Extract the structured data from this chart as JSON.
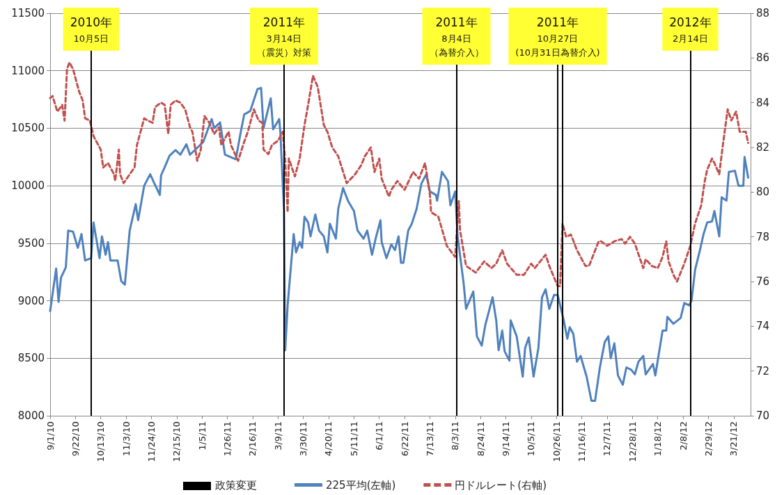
{
  "chart_data": {
    "type": "line",
    "xlim": [
      "2010-09-01",
      "2012-04-04"
    ],
    "xticks": [
      {
        "value": "2010-09-01",
        "label": "9/1/10"
      },
      {
        "value": "2010-09-22",
        "label": "9/22/10"
      },
      {
        "value": "2010-10-13",
        "label": "10/13/10"
      },
      {
        "value": "2010-11-03",
        "label": "11/3/10"
      },
      {
        "value": "2010-11-24",
        "label": "11/24/10"
      },
      {
        "value": "2010-12-15",
        "label": "12/15/10"
      },
      {
        "value": "2011-01-05",
        "label": "1/5/11"
      },
      {
        "value": "2011-01-26",
        "label": "1/26/11"
      },
      {
        "value": "2011-02-16",
        "label": "2/16/11"
      },
      {
        "value": "2011-03-09",
        "label": "3/9/11"
      },
      {
        "value": "2011-03-30",
        "label": "3/30/11"
      },
      {
        "value": "2011-04-20",
        "label": "4/20/11"
      },
      {
        "value": "2011-05-11",
        "label": "5/11/11"
      },
      {
        "value": "2011-06-01",
        "label": "6/1/11"
      },
      {
        "value": "2011-06-22",
        "label": "6/22/11"
      },
      {
        "value": "2011-07-13",
        "label": "7/13/11"
      },
      {
        "value": "2011-08-03",
        "label": "8/3/11"
      },
      {
        "value": "2011-08-24",
        "label": "8/24/11"
      },
      {
        "value": "2011-09-14",
        "label": "9/14/11"
      },
      {
        "value": "2011-10-05",
        "label": "10/5/11"
      },
      {
        "value": "2011-10-26",
        "label": "10/26/11"
      },
      {
        "value": "2011-11-16",
        "label": "11/16/11"
      },
      {
        "value": "2011-12-07",
        "label": "12/7/11"
      },
      {
        "value": "2011-12-28",
        "label": "12/28/11"
      },
      {
        "value": "2012-01-18",
        "label": "1/18/12"
      },
      {
        "value": "2012-02-08",
        "label": "2/8/12"
      },
      {
        "value": "2012-02-29",
        "label": "2/29/12"
      },
      {
        "value": "2012-03-21",
        "label": "3/21/12"
      }
    ],
    "ylim": [
      8000,
      11500
    ],
    "yticks": [
      8000,
      8500,
      9000,
      9500,
      10000,
      10500,
      11000,
      11500
    ],
    "y2lim": [
      70,
      88
    ],
    "y2ticks": [
      70,
      72,
      74,
      76,
      78,
      80,
      82,
      84,
      86,
      88
    ],
    "grid": "y",
    "legend": "bottom",
    "marker": "none",
    "annotations": [
      "政策変更"
    ],
    "ref_lines": [
      {
        "axis": "x",
        "value": "2010-10-05",
        "label": "2010年\n10月5日",
        "color": "#000000"
      },
      {
        "axis": "x",
        "value": "2011-03-14",
        "label": "2011年\n3月14日（震災）対策",
        "color": "#000000"
      },
      {
        "axis": "x",
        "value": "2011-08-04",
        "label": "2011年\n8月4日（為替介入）",
        "color": "#000000"
      },
      {
        "axis": "x",
        "value": "2011-10-27",
        "label": "2011年\n10月27日(10月31日為替介入)",
        "color": "#000000"
      },
      {
        "axis": "x",
        "value": "2011-10-31",
        "label": null,
        "color": "#000000"
      },
      {
        "axis": "x",
        "value": "2012-02-14",
        "label": "2012年\n2月14日",
        "color": "#000000"
      }
    ],
    "series": [
      {
        "name": "225平均(左軸)",
        "color": "#4f81bd",
        "line_style": "solid",
        "x": [
          "2010-09-01",
          "2010-09-06",
          "2010-09-08",
          "2010-09-10",
          "2010-09-14",
          "2010-09-16",
          "2010-09-20",
          "2010-09-24",
          "2010-09-27",
          "2010-09-30",
          "2010-10-05",
          "2010-10-07",
          "2010-10-12",
          "2010-10-14",
          "2010-10-17",
          "2010-10-19",
          "2010-10-21",
          "2010-10-27",
          "2010-10-30",
          "2010-11-02",
          "2010-11-06",
          "2010-11-11",
          "2010-11-13",
          "2010-11-18",
          "2010-11-23",
          "2010-11-26",
          "2010-12-01",
          "2010-12-02",
          "2010-12-05",
          "2010-12-09",
          "2010-12-14",
          "2010-12-18",
          "2010-12-23",
          "2010-12-26",
          "2011-01-06",
          "2011-01-13",
          "2011-01-15",
          "2011-01-20",
          "2011-01-24",
          "2011-02-02",
          "2011-02-06",
          "2011-02-09",
          "2011-02-14",
          "2011-02-20",
          "2011-02-23",
          "2011-02-25",
          "2011-03-03",
          "2011-03-05",
          "2011-03-10",
          "2011-03-11",
          "2011-03-14",
          "2011-03-15",
          "2011-03-17",
          "2011-03-22",
          "2011-03-24",
          "2011-03-27",
          "2011-03-29",
          "2011-03-31",
          "2011-04-03",
          "2011-04-05",
          "2011-04-09",
          "2011-04-12",
          "2011-04-16",
          "2011-04-19",
          "2011-04-21",
          "2011-04-26",
          "2011-04-28",
          "2011-05-02",
          "2011-05-06",
          "2011-05-11",
          "2011-05-14",
          "2011-05-19",
          "2011-05-22",
          "2011-05-26",
          "2011-05-29",
          "2011-06-02",
          "2011-06-03",
          "2011-06-07",
          "2011-06-11",
          "2011-06-14",
          "2011-06-17",
          "2011-06-19",
          "2011-06-21",
          "2011-06-25",
          "2011-06-28",
          "2011-07-02",
          "2011-07-06",
          "2011-07-10",
          "2011-07-13",
          "2011-07-18",
          "2011-07-19",
          "2011-07-23",
          "2011-07-28",
          "2011-07-30",
          "2011-08-03",
          "2011-08-05",
          "2011-08-10",
          "2011-08-12",
          "2011-08-14",
          "2011-08-18",
          "2011-08-21",
          "2011-08-25",
          "2011-08-28",
          "2011-09-03",
          "2011-09-06",
          "2011-09-08",
          "2011-09-11",
          "2011-09-13",
          "2011-09-17",
          "2011-09-18",
          "2011-09-23",
          "2011-09-28",
          "2011-09-30",
          "2011-10-03",
          "2011-10-07",
          "2011-10-11",
          "2011-10-14",
          "2011-10-17",
          "2011-10-20",
          "2011-10-24",
          "2011-10-27",
          "2011-11-01",
          "2011-11-04",
          "2011-11-06",
          "2011-11-09",
          "2011-11-12",
          "2011-11-15",
          "2011-11-20",
          "2011-11-24",
          "2011-11-27",
          "2011-12-01",
          "2011-12-05",
          "2011-12-08",
          "2011-12-10",
          "2011-12-13",
          "2011-12-16",
          "2011-12-20",
          "2011-12-23",
          "2011-12-27",
          "2011-12-30",
          "2012-01-02",
          "2012-01-06",
          "2012-01-08",
          "2012-01-14",
          "2012-01-16",
          "2012-01-22",
          "2012-01-25",
          "2012-01-26",
          "2012-01-31",
          "2012-02-06",
          "2012-02-09",
          "2012-02-13",
          "2012-02-15",
          "2012-02-18",
          "2012-02-22",
          "2012-02-25",
          "2012-02-28",
          "2012-03-03",
          "2012-03-05",
          "2012-03-09",
          "2012-03-11",
          "2012-03-15",
          "2012-03-17",
          "2012-03-22",
          "2012-03-25",
          "2012-03-29",
          "2012-03-30",
          "2012-04-02"
        ],
        "values": [
          8910,
          9280,
          8990,
          9200,
          9290,
          9610,
          9600,
          9460,
          9580,
          9350,
          9370,
          9680,
          9370,
          9560,
          9400,
          9510,
          9350,
          9350,
          9170,
          9140,
          9610,
          9840,
          9700,
          10000,
          10100,
          10030,
          9920,
          10090,
          10160,
          10260,
          10310,
          10270,
          10360,
          10270,
          10380,
          10580,
          10500,
          10550,
          10270,
          10230,
          10460,
          10620,
          10650,
          10840,
          10850,
          10500,
          10760,
          10490,
          10580,
          10460,
          9780,
          8570,
          8960,
          9580,
          9420,
          9510,
          9460,
          9730,
          9680,
          9560,
          9750,
          9610,
          9560,
          9420,
          9670,
          9540,
          9800,
          9980,
          9870,
          9780,
          9610,
          9540,
          9610,
          9400,
          9540,
          9700,
          9510,
          9370,
          9490,
          9440,
          9560,
          9330,
          9330,
          9610,
          9670,
          9800,
          10020,
          10100,
          9950,
          9920,
          9870,
          10120,
          10040,
          9830,
          9950,
          9560,
          9150,
          8930,
          8980,
          9080,
          8690,
          8610,
          8790,
          9030,
          8830,
          8570,
          8740,
          8560,
          8480,
          8830,
          8690,
          8340,
          8590,
          8680,
          8340,
          8590,
          9030,
          9100,
          8930,
          9050,
          9050,
          8830,
          8670,
          8770,
          8710,
          8470,
          8520,
          8340,
          8130,
          8130,
          8420,
          8640,
          8690,
          8500,
          8630,
          8350,
          8270,
          8420,
          8400,
          8360,
          8470,
          8520,
          8360,
          8450,
          8350,
          8740,
          8740,
          8860,
          8800,
          8850,
          8980,
          8960,
          9000,
          9270,
          9440,
          9580,
          9680,
          9690,
          9780,
          9560,
          9900,
          9870,
          10120,
          10130,
          10000,
          10000,
          10250,
          10070
        ]
      },
      {
        "name": "円ドルレート(右軸)",
        "color": "#c0504d",
        "axis": "y2",
        "line_style": "dashed",
        "x": [
          "2010-09-01",
          "2010-09-03",
          "2010-09-07",
          "2010-09-11",
          "2010-09-13",
          "2010-09-15",
          "2010-09-17",
          "2010-09-20",
          "2010-09-25",
          "2010-09-28",
          "2010-09-30",
          "2010-10-04",
          "2010-10-07",
          "2010-10-13",
          "2010-10-15",
          "2010-10-19",
          "2010-10-24",
          "2010-10-25",
          "2010-10-28",
          "2010-10-29",
          "2010-11-01",
          "2010-11-06",
          "2010-11-10",
          "2010-11-12",
          "2010-11-18",
          "2010-11-21",
          "2010-11-25",
          "2010-11-27",
          "2010-12-02",
          "2010-12-05",
          "2010-12-08",
          "2010-12-10",
          "2010-12-14",
          "2010-12-18",
          "2010-12-22",
          "2010-12-26",
          "2010-12-28",
          "2011-01-01",
          "2011-01-04",
          "2011-01-07",
          "2011-01-11",
          "2011-01-15",
          "2011-01-19",
          "2011-01-21",
          "2011-01-27",
          "2011-01-29",
          "2011-02-04",
          "2011-02-08",
          "2011-02-12",
          "2011-02-17",
          "2011-02-21",
          "2011-02-24",
          "2011-02-25",
          "2011-03-01",
          "2011-03-04",
          "2011-03-09",
          "2011-03-13",
          "2011-03-15",
          "2011-03-17",
          "2011-03-18",
          "2011-03-23",
          "2011-03-27",
          "2011-03-31",
          "2011-04-03",
          "2011-04-07",
          "2011-04-11",
          "2011-04-16",
          "2011-04-19",
          "2011-04-23",
          "2011-04-28",
          "2011-05-05",
          "2011-05-12",
          "2011-05-17",
          "2011-05-20",
          "2011-05-25",
          "2011-05-28",
          "2011-06-01",
          "2011-06-03",
          "2011-06-09",
          "2011-06-11",
          "2011-06-16",
          "2011-06-22",
          "2011-06-29",
          "2011-07-04",
          "2011-07-09",
          "2011-07-13",
          "2011-07-14",
          "2011-07-20",
          "2011-07-27",
          "2011-08-03",
          "2011-08-06",
          "2011-08-07",
          "2011-08-12",
          "2011-08-20",
          "2011-08-27",
          "2011-09-02",
          "2011-09-06",
          "2011-09-11",
          "2011-09-15",
          "2011-09-23",
          "2011-09-29",
          "2011-10-05",
          "2011-10-08",
          "2011-10-14",
          "2011-10-17",
          "2011-10-20",
          "2011-10-27",
          "2011-10-29",
          "2011-10-31",
          "2011-11-03",
          "2011-11-07",
          "2011-11-12",
          "2011-11-19",
          "2011-11-22",
          "2011-11-30",
          "2011-12-02",
          "2011-12-07",
          "2011-12-13",
          "2011-12-19",
          "2011-12-22",
          "2011-12-26",
          "2011-12-30",
          "2012-01-06",
          "2012-01-08",
          "2012-01-13",
          "2012-01-18",
          "2012-01-22",
          "2012-01-25",
          "2012-01-27",
          "2012-01-31",
          "2012-02-03",
          "2012-02-09",
          "2012-02-14",
          "2012-02-18",
          "2012-02-23",
          "2012-02-26",
          "2012-02-28",
          "2012-03-03",
          "2012-03-05",
          "2012-03-09",
          "2012-03-12",
          "2012-03-16",
          "2012-03-19",
          "2012-03-23",
          "2012-03-26",
          "2012-03-31",
          "2012-04-02"
        ],
        "values": [
          84.2,
          84.3,
          83.6,
          83.9,
          83.2,
          85.5,
          85.8,
          85.5,
          84.5,
          84.1,
          83.3,
          83.2,
          82.5,
          81.9,
          81.1,
          81.3,
          80.8,
          80.5,
          81.9,
          80.8,
          80.4,
          80.8,
          81.1,
          82.1,
          83.3,
          83.2,
          83.1,
          83.8,
          84.0,
          83.9,
          82.6,
          83.9,
          84.1,
          84.0,
          83.7,
          82.9,
          82.7,
          81.4,
          81.9,
          83.4,
          83.1,
          82.6,
          82.9,
          82.1,
          82.7,
          82.1,
          81.4,
          82.1,
          82.7,
          83.7,
          83.2,
          83.1,
          81.9,
          81.7,
          82.1,
          82.3,
          82.7,
          81.4,
          79.1,
          81.5,
          80.7,
          81.5,
          83.0,
          83.9,
          85.2,
          84.7,
          83.0,
          82.7,
          82.0,
          81.6,
          80.4,
          80.8,
          81.2,
          81.6,
          82.0,
          80.9,
          81.5,
          80.6,
          79.8,
          80.1,
          80.5,
          80.1,
          80.9,
          80.6,
          81.3,
          79.9,
          79.1,
          78.9,
          77.6,
          77.1,
          79.6,
          78.3,
          76.7,
          76.4,
          76.9,
          76.6,
          76.8,
          77.4,
          76.8,
          76.3,
          76.3,
          76.8,
          76.6,
          77.0,
          77.2,
          76.7,
          75.8,
          75.8,
          78.6,
          78.0,
          78.1,
          77.4,
          76.7,
          76.7,
          77.8,
          77.8,
          77.6,
          77.8,
          77.9,
          77.7,
          78.0,
          77.7,
          76.6,
          77.0,
          76.7,
          76.6,
          77.1,
          77.8,
          76.9,
          76.3,
          76.0,
          76.8,
          77.6,
          78.6,
          79.4,
          80.5,
          81.0,
          81.5,
          81.3,
          80.8,
          82.1,
          83.7,
          83.2,
          83.6,
          82.7,
          82.7,
          82.2
        ]
      }
    ]
  }
}
